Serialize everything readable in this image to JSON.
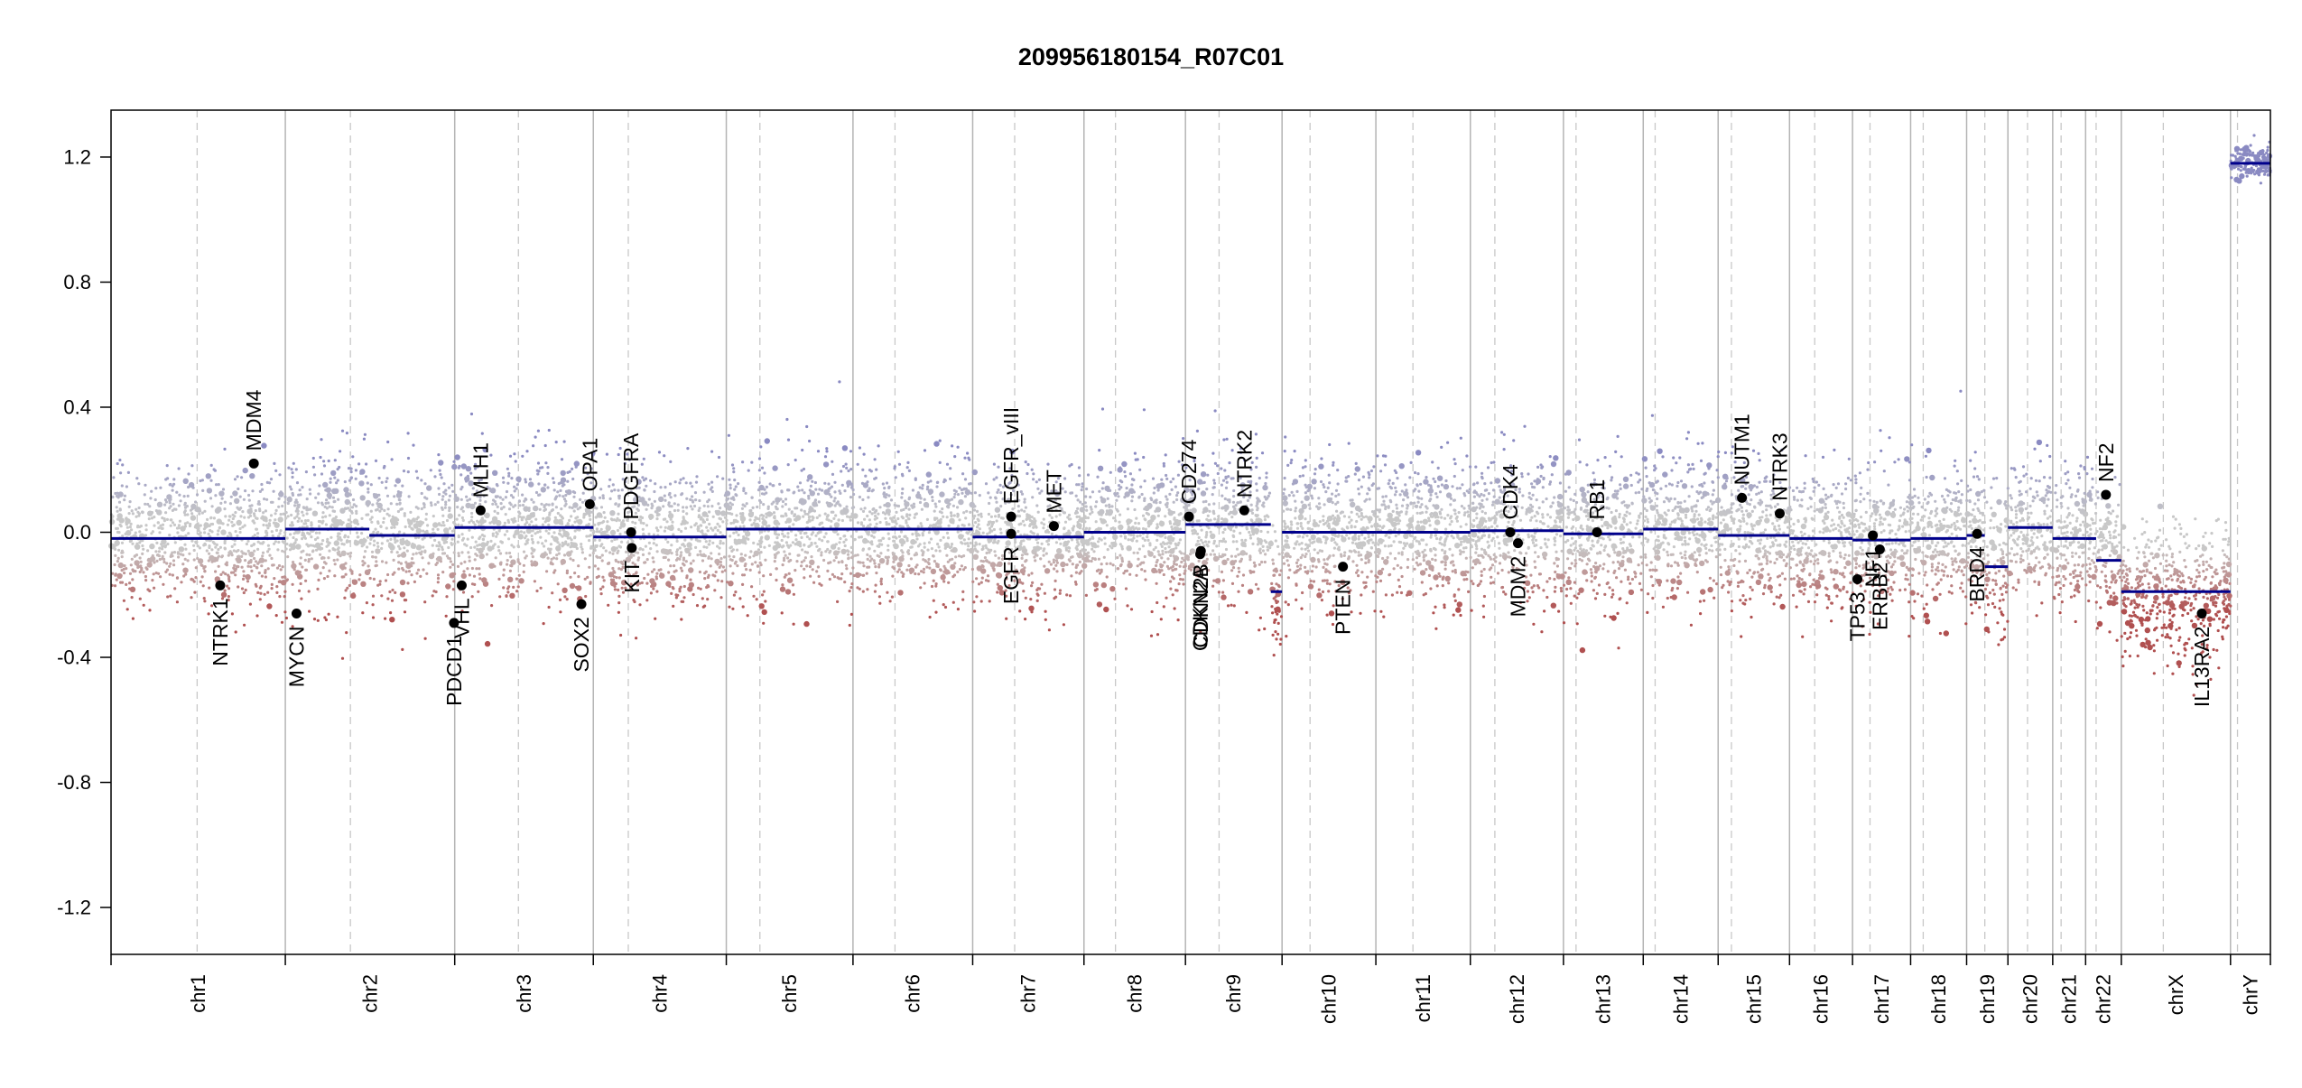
{
  "chart_data": {
    "type": "scatter",
    "title": "209956180154_R07C01",
    "xlabel": "",
    "ylabel": "",
    "ylim": [
      -1.35,
      1.35
    ],
    "yticks": [
      "-1.2",
      "-0.8",
      "-0.4",
      "0.0",
      "0.4",
      "0.8",
      "1.2"
    ],
    "colors": {
      "segment": "#00008b",
      "gain": "#8a8ac2",
      "loss": "#b05050",
      "neutral": "#c8c8c8",
      "frame": "#000000",
      "boundary": "#b4b4b4",
      "centromere": "#c8c8c8",
      "marker": "#000000"
    },
    "chromosomes": [
      {
        "name": "chr1",
        "size": 249,
        "cen": 123,
        "segments": [
          {
            "start": 0,
            "end": 249,
            "value": -0.02
          }
        ]
      },
      {
        "name": "chr2",
        "size": 242,
        "cen": 93,
        "segments": [
          {
            "start": 0,
            "end": 120,
            "value": 0.01
          },
          {
            "start": 120,
            "end": 242,
            "value": -0.01
          }
        ]
      },
      {
        "name": "chr3",
        "size": 198,
        "cen": 91,
        "segments": [
          {
            "start": 0,
            "end": 198,
            "value": 0.015
          }
        ]
      },
      {
        "name": "chr4",
        "size": 190,
        "cen": 50,
        "segments": [
          {
            "start": 0,
            "end": 190,
            "value": -0.015
          }
        ]
      },
      {
        "name": "chr5",
        "size": 181,
        "cen": 48,
        "segments": [
          {
            "start": 0,
            "end": 181,
            "value": 0.01
          }
        ]
      },
      {
        "name": "chr6",
        "size": 171,
        "cen": 60,
        "segments": [
          {
            "start": 0,
            "end": 171,
            "value": 0.01
          }
        ]
      },
      {
        "name": "chr7",
        "size": 159,
        "cen": 60,
        "segments": [
          {
            "start": 0,
            "end": 159,
            "value": -0.015
          }
        ]
      },
      {
        "name": "chr8",
        "size": 145,
        "cen": 45,
        "segments": [
          {
            "start": 0,
            "end": 145,
            "value": 0.0
          }
        ]
      },
      {
        "name": "chr9",
        "size": 138,
        "cen": 48,
        "segments": [
          {
            "start": 0,
            "end": 122,
            "value": 0.025
          },
          {
            "start": 122,
            "end": 138,
            "value": -0.19
          }
        ]
      },
      {
        "name": "chr10",
        "size": 134,
        "cen": 40,
        "segments": [
          {
            "start": 0,
            "end": 134,
            "value": 0.0
          }
        ]
      },
      {
        "name": "chr11",
        "size": 135,
        "cen": 53,
        "segments": [
          {
            "start": 0,
            "end": 135,
            "value": 0.0
          }
        ]
      },
      {
        "name": "chr12",
        "size": 133,
        "cen": 35,
        "segments": [
          {
            "start": 0,
            "end": 133,
            "value": 0.005
          }
        ]
      },
      {
        "name": "chr13",
        "size": 114,
        "cen": 18,
        "segments": [
          {
            "start": 0,
            "end": 114,
            "value": -0.005
          }
        ]
      },
      {
        "name": "chr14",
        "size": 107,
        "cen": 17,
        "segments": [
          {
            "start": 0,
            "end": 107,
            "value": 0.01
          }
        ]
      },
      {
        "name": "chr15",
        "size": 102,
        "cen": 19,
        "segments": [
          {
            "start": 0,
            "end": 102,
            "value": -0.01
          }
        ]
      },
      {
        "name": "chr16",
        "size": 90,
        "cen": 36,
        "segments": [
          {
            "start": 0,
            "end": 90,
            "value": -0.02
          }
        ]
      },
      {
        "name": "chr17",
        "size": 83,
        "cen": 25,
        "segments": [
          {
            "start": 0,
            "end": 83,
            "value": -0.025
          }
        ]
      },
      {
        "name": "chr18",
        "size": 80,
        "cen": 18,
        "segments": [
          {
            "start": 0,
            "end": 80,
            "value": -0.02
          }
        ]
      },
      {
        "name": "chr19",
        "size": 59,
        "cen": 26,
        "segments": [
          {
            "start": 0,
            "end": 26,
            "value": -0.01
          },
          {
            "start": 26,
            "end": 59,
            "value": -0.11
          }
        ]
      },
      {
        "name": "chr20",
        "size": 64,
        "cen": 28,
        "segments": [
          {
            "start": 0,
            "end": 64,
            "value": 0.015
          }
        ]
      },
      {
        "name": "chr21",
        "size": 47,
        "cen": 12,
        "segments": [
          {
            "start": 0,
            "end": 47,
            "value": -0.02
          }
        ]
      },
      {
        "name": "chr22",
        "size": 51,
        "cen": 15,
        "segments": [
          {
            "start": 0,
            "end": 15,
            "value": -0.02
          },
          {
            "start": 15,
            "end": 51,
            "value": -0.09
          }
        ]
      },
      {
        "name": "chrX",
        "size": 156,
        "cen": 60,
        "segments": [
          {
            "start": 0,
            "end": 156,
            "value": -0.19
          }
        ]
      },
      {
        "name": "chrY",
        "size": 57,
        "cen": 10,
        "segments": [
          {
            "start": 0,
            "end": 57,
            "value": 1.18
          }
        ]
      }
    ],
    "genes": [
      {
        "name": "NTRK1",
        "chr": "chr1",
        "pos": 156,
        "value": -0.17
      },
      {
        "name": "MDM4",
        "chr": "chr1",
        "pos": 204,
        "value": 0.22
      },
      {
        "name": "MYCN",
        "chr": "chr2",
        "pos": 16,
        "value": -0.26
      },
      {
        "name": "PDCD1",
        "chr": "chr2",
        "pos": 241,
        "value": -0.29
      },
      {
        "name": "VHL",
        "chr": "chr3",
        "pos": 10,
        "value": -0.17
      },
      {
        "name": "MLH1",
        "chr": "chr3",
        "pos": 37,
        "value": 0.07
      },
      {
        "name": "SOX2",
        "chr": "chr3",
        "pos": 181,
        "value": -0.23
      },
      {
        "name": "OPA1",
        "chr": "chr3",
        "pos": 193,
        "value": 0.09
      },
      {
        "name": "KIT",
        "chr": "chr4",
        "pos": 55,
        "value": -0.05
      },
      {
        "name": "PDGFRA",
        "chr": "chr4",
        "pos": 54,
        "value": 0.0
      },
      {
        "name": "EGFR",
        "chr": "chr7",
        "pos": 55,
        "value": -0.005
      },
      {
        "name": "EGFR_vIII",
        "chr": "chr7",
        "pos": 55,
        "value": 0.05
      },
      {
        "name": "MET",
        "chr": "chr7",
        "pos": 116,
        "value": 0.02
      },
      {
        "name": "CD274",
        "chr": "chr9",
        "pos": 5,
        "value": 0.05
      },
      {
        "name": "CDKN2A",
        "chr": "chr9",
        "pos": 21,
        "value": -0.07
      },
      {
        "name": "CDKN2B",
        "chr": "chr9",
        "pos": 22,
        "value": -0.06
      },
      {
        "name": "NTRK2",
        "chr": "chr9",
        "pos": 84,
        "value": 0.07
      },
      {
        "name": "PTEN",
        "chr": "chr10",
        "pos": 87,
        "value": -0.11
      },
      {
        "name": "CDK4",
        "chr": "chr12",
        "pos": 57,
        "value": 0.0
      },
      {
        "name": "MDM2",
        "chr": "chr12",
        "pos": 68,
        "value": -0.035
      },
      {
        "name": "RB1",
        "chr": "chr13",
        "pos": 48,
        "value": 0.0
      },
      {
        "name": "NUTM1",
        "chr": "chr15",
        "pos": 34,
        "value": 0.11
      },
      {
        "name": "NTRK3",
        "chr": "chr15",
        "pos": 88,
        "value": 0.06
      },
      {
        "name": "TP53",
        "chr": "chr17",
        "pos": 7,
        "value": -0.15
      },
      {
        "name": "NF1",
        "chr": "chr17",
        "pos": 29,
        "value": -0.01
      },
      {
        "name": "ERBB2",
        "chr": "chr17",
        "pos": 39,
        "value": -0.055
      },
      {
        "name": "BRD4",
        "chr": "chr19",
        "pos": 15,
        "value": -0.005
      },
      {
        "name": "NF2",
        "chr": "chr22",
        "pos": 29,
        "value": 0.12
      },
      {
        "name": "IL13RA2",
        "chr": "chrX",
        "pos": 115,
        "value": -0.26
      }
    ]
  }
}
